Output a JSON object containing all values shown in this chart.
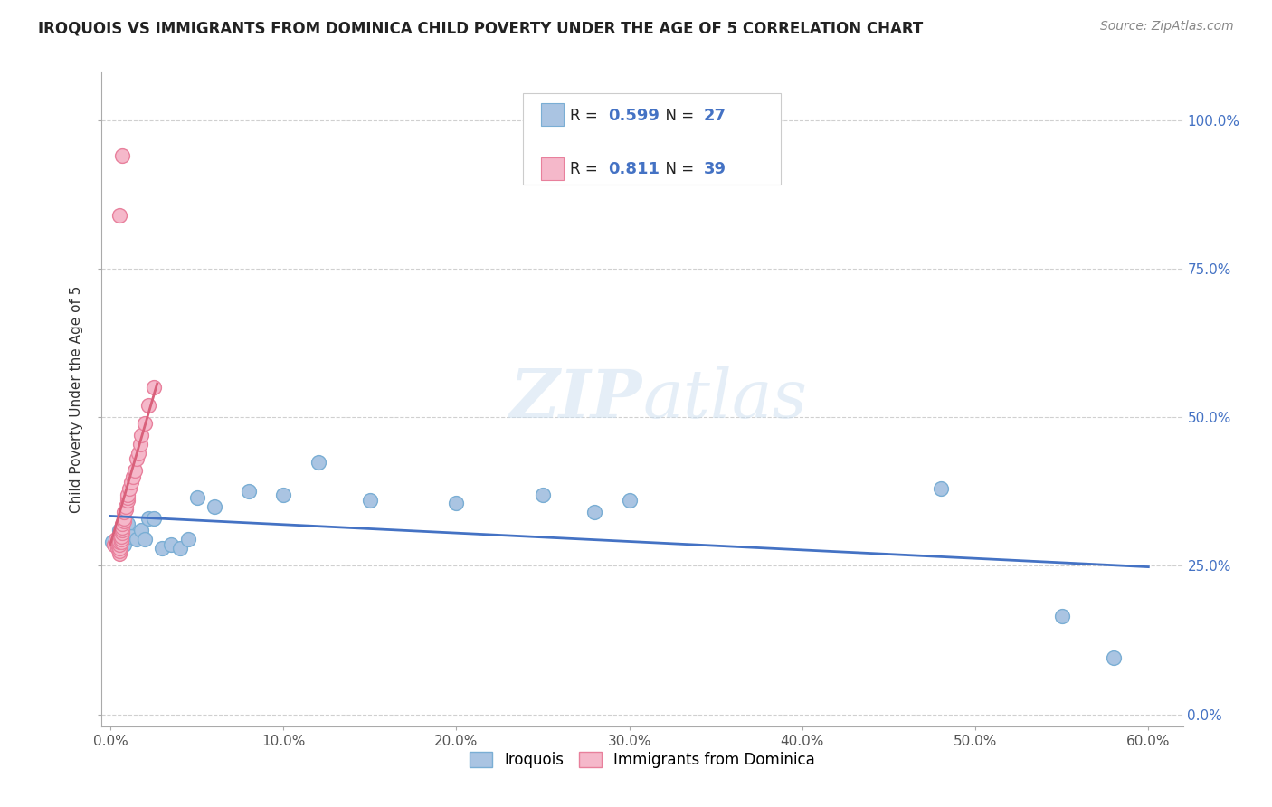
{
  "title": "IROQUOIS VS IMMIGRANTS FROM DOMINICA CHILD POVERTY UNDER THE AGE OF 5 CORRELATION CHART",
  "source": "Source: ZipAtlas.com",
  "ylabel": "Child Poverty Under the Age of 5",
  "xlim": [
    -0.005,
    0.62
  ],
  "ylim": [
    -0.02,
    1.08
  ],
  "xticks": [
    0.0,
    0.1,
    0.2,
    0.3,
    0.4,
    0.5,
    0.6
  ],
  "xticklabels": [
    "0.0%",
    "10.0%",
    "20.0%",
    "30.0%",
    "40.0%",
    "50.0%",
    "60.0%"
  ],
  "yticks": [
    0.0,
    0.25,
    0.5,
    0.75,
    1.0
  ],
  "yticklabels": [
    "0.0%",
    "25.0%",
    "50.0%",
    "75.0%",
    "100.0%"
  ],
  "blue_color": "#aac4e2",
  "blue_edge": "#7aaed4",
  "pink_color": "#f5b8ca",
  "pink_edge": "#e8809c",
  "blue_line_color": "#4472c4",
  "pink_line_color": "#d9607a",
  "legend_blue_R": "0.599",
  "legend_blue_N": "27",
  "legend_pink_R": "0.811",
  "legend_pink_N": "39",
  "label_iroquois": "Iroquois",
  "label_dominica": "Immigrants from Dominica",
  "text_color": "#4472c4",
  "watermark": "ZIPatlas",
  "blue_scatter_x": [
    0.001,
    0.005,
    0.008,
    0.01,
    0.012,
    0.015,
    0.018,
    0.02,
    0.022,
    0.025,
    0.03,
    0.035,
    0.04,
    0.045,
    0.05,
    0.06,
    0.08,
    0.1,
    0.12,
    0.15,
    0.2,
    0.25,
    0.28,
    0.3,
    0.48,
    0.55,
    0.58
  ],
  "blue_scatter_y": [
    0.29,
    0.31,
    0.285,
    0.32,
    0.3,
    0.295,
    0.31,
    0.295,
    0.33,
    0.33,
    0.28,
    0.285,
    0.28,
    0.295,
    0.365,
    0.35,
    0.375,
    0.37,
    0.425,
    0.36,
    0.355,
    0.37,
    0.34,
    0.36,
    0.38,
    0.165,
    0.095
  ],
  "pink_scatter_x": [
    0.002,
    0.003,
    0.003,
    0.004,
    0.004,
    0.004,
    0.005,
    0.005,
    0.005,
    0.005,
    0.005,
    0.006,
    0.006,
    0.006,
    0.007,
    0.007,
    0.007,
    0.007,
    0.008,
    0.008,
    0.008,
    0.009,
    0.009,
    0.01,
    0.01,
    0.01,
    0.011,
    0.012,
    0.013,
    0.014,
    0.015,
    0.016,
    0.017,
    0.018,
    0.02,
    0.022,
    0.025,
    0.005,
    0.007
  ],
  "pink_scatter_y": [
    0.285,
    0.29,
    0.295,
    0.28,
    0.285,
    0.29,
    0.27,
    0.275,
    0.28,
    0.285,
    0.29,
    0.29,
    0.295,
    0.3,
    0.305,
    0.31,
    0.315,
    0.32,
    0.325,
    0.33,
    0.34,
    0.345,
    0.35,
    0.36,
    0.365,
    0.37,
    0.38,
    0.39,
    0.4,
    0.41,
    0.43,
    0.44,
    0.455,
    0.47,
    0.49,
    0.52,
    0.55,
    0.84,
    0.94
  ],
  "background_color": "#ffffff",
  "grid_color": "#d0d0d0"
}
